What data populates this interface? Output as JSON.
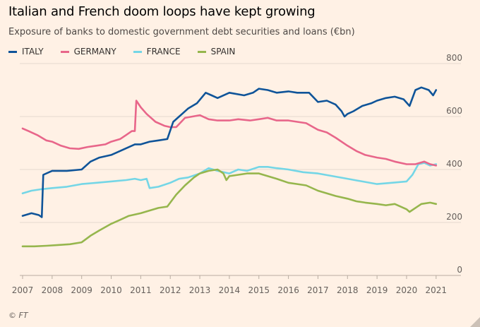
{
  "chart_data": {
    "type": "line",
    "title": "Italian and French doom loops have kept growing",
    "subtitle": "Exposure of banks to domestic government debt securities and loans (€bn)",
    "xlabel": "",
    "ylabel": "",
    "xlim": [
      2007,
      2021.1
    ],
    "ylim": [
      0,
      800
    ],
    "yticks": [
      "800",
      "600",
      "400",
      "200",
      "0"
    ],
    "xticks": [
      "2007",
      "2008",
      "2009",
      "2010",
      "2011",
      "2012",
      "2013",
      "2014",
      "2015",
      "2016",
      "2017",
      "2018",
      "2019",
      "2020",
      "2021"
    ],
    "grid": true,
    "legend_position": "top-left",
    "series": [
      {
        "name": "ITALY",
        "color": "#0f5499",
        "x": [
          2007.0,
          2007.3,
          2007.55,
          2007.65,
          2007.7,
          2008.0,
          2008.5,
          2009.0,
          2009.3,
          2009.6,
          2010.0,
          2010.3,
          2010.8,
          2011.0,
          2011.3,
          2011.6,
          2011.9,
          2012.1,
          2012.3,
          2012.6,
          2012.9,
          2013.2,
          2013.4,
          2013.6,
          2014.0,
          2014.5,
          2014.8,
          2015.0,
          2015.3,
          2015.6,
          2016.0,
          2016.3,
          2016.7,
          2017.0,
          2017.3,
          2017.6,
          2017.8,
          2017.9,
          2018.0,
          2018.2,
          2018.5,
          2018.8,
          2019.0,
          2019.3,
          2019.6,
          2019.9,
          2020.1,
          2020.3,
          2020.5,
          2020.75,
          2020.9,
          2021.0
        ],
        "y": [
          225,
          235,
          228,
          220,
          380,
          395,
          395,
          400,
          430,
          445,
          455,
          470,
          495,
          495,
          505,
          510,
          515,
          580,
          600,
          630,
          650,
          690,
          680,
          670,
          690,
          680,
          690,
          705,
          700,
          690,
          695,
          690,
          690,
          655,
          660,
          645,
          620,
          600,
          610,
          620,
          640,
          650,
          660,
          670,
          675,
          665,
          640,
          700,
          710,
          700,
          680,
          700
        ]
      },
      {
        "name": "GERMANY",
        "color": "#e8668a",
        "x": [
          2007.0,
          2007.2,
          2007.5,
          2007.8,
          2008.0,
          2008.3,
          2008.6,
          2008.9,
          2009.2,
          2009.5,
          2009.8,
          2010.0,
          2010.3,
          2010.5,
          2010.7,
          2010.8,
          2010.85,
          2011.0,
          2011.2,
          2011.5,
          2011.8,
          2012.0,
          2012.2,
          2012.5,
          2013.0,
          2013.3,
          2013.6,
          2014.0,
          2014.3,
          2014.7,
          2015.0,
          2015.3,
          2015.6,
          2016.0,
          2016.3,
          2016.6,
          2017.0,
          2017.3,
          2017.6,
          2018.0,
          2018.3,
          2018.6,
          2019.0,
          2019.3,
          2019.6,
          2020.0,
          2020.3,
          2020.6,
          2020.8,
          2021.0
        ],
        "y": [
          555,
          545,
          530,
          510,
          505,
          490,
          480,
          478,
          485,
          490,
          495,
          505,
          515,
          530,
          545,
          545,
          660,
          635,
          610,
          580,
          565,
          560,
          560,
          595,
          605,
          590,
          585,
          585,
          590,
          585,
          590,
          595,
          585,
          585,
          580,
          575,
          550,
          540,
          520,
          490,
          470,
          455,
          445,
          440,
          430,
          420,
          420,
          430,
          420,
          415
        ]
      },
      {
        "name": "FRANCE",
        "color": "#74d6e6",
        "x": [
          2007.0,
          2007.3,
          2007.6,
          2008.0,
          2008.5,
          2009.0,
          2009.5,
          2010.0,
          2010.5,
          2010.8,
          2011.0,
          2011.2,
          2011.3,
          2011.6,
          2012.0,
          2012.3,
          2012.6,
          2013.0,
          2013.3,
          2013.6,
          2014.0,
          2014.3,
          2014.6,
          2015.0,
          2015.3,
          2015.6,
          2016.0,
          2016.5,
          2017.0,
          2017.5,
          2018.0,
          2018.5,
          2019.0,
          2019.5,
          2020.0,
          2020.2,
          2020.4,
          2020.6,
          2020.8,
          2021.0
        ],
        "y": [
          310,
          320,
          325,
          330,
          335,
          345,
          350,
          355,
          360,
          365,
          360,
          365,
          330,
          335,
          350,
          365,
          370,
          385,
          405,
          395,
          385,
          400,
          395,
          410,
          410,
          405,
          400,
          390,
          385,
          375,
          365,
          355,
          345,
          350,
          355,
          380,
          420,
          425,
          415,
          420
        ]
      },
      {
        "name": "SPAIN",
        "color": "#96b64d",
        "x": [
          2007.0,
          2007.4,
          2007.8,
          2008.2,
          2008.6,
          2009.0,
          2009.3,
          2009.6,
          2010.0,
          2010.3,
          2010.6,
          2011.0,
          2011.3,
          2011.6,
          2011.9,
          2012.0,
          2012.2,
          2012.5,
          2012.8,
          2013.0,
          2013.3,
          2013.6,
          2013.8,
          2013.9,
          2014.0,
          2014.3,
          2014.6,
          2015.0,
          2015.3,
          2015.6,
          2016.0,
          2016.3,
          2016.6,
          2017.0,
          2017.3,
          2017.6,
          2018.0,
          2018.3,
          2018.6,
          2019.0,
          2019.3,
          2019.6,
          2020.0,
          2020.1,
          2020.3,
          2020.5,
          2020.8,
          2021.0
        ],
        "y": [
          110,
          110,
          112,
          115,
          118,
          125,
          150,
          170,
          195,
          210,
          225,
          235,
          245,
          255,
          260,
          275,
          305,
          340,
          370,
          385,
          395,
          400,
          385,
          360,
          375,
          380,
          385,
          385,
          375,
          365,
          350,
          345,
          340,
          320,
          310,
          300,
          290,
          280,
          275,
          270,
          265,
          270,
          250,
          240,
          255,
          270,
          275,
          270
        ]
      }
    ]
  },
  "legend_entries": [
    "ITALY",
    "GERMANY",
    "FRANCE",
    "SPAIN"
  ],
  "credit": "© FT"
}
